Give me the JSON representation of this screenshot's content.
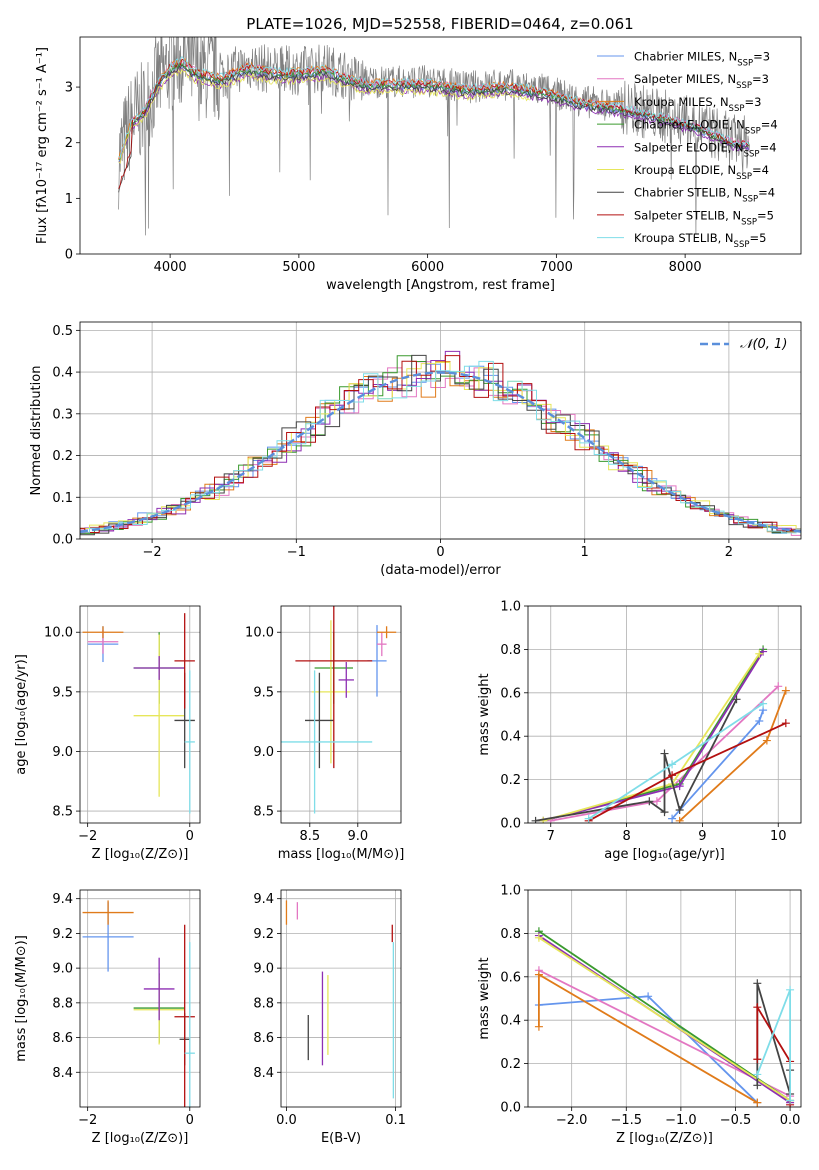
{
  "chart_data": [
    {
      "panel": "spectrum",
      "type": "line",
      "title": "PLATE=1026, MJD=52558, FIBERID=0464, z=0.061",
      "xlabel": "wavelength [Angstrom, rest frame]",
      "ylabel": "Flux [fλ10⁻¹⁷ erg cm⁻² s⁻¹ A⁻¹]",
      "xlim": [
        3300,
        8900
      ],
      "ylim": [
        0,
        3.9
      ],
      "xticks": [
        "4000",
        "5000",
        "6000",
        "7000",
        "8000"
      ],
      "yticks": [
        "0",
        "1",
        "2",
        "3"
      ],
      "legend": "top-right",
      "data_color": "#808080",
      "data_anchors": [
        [
          3600,
          1.7
        ],
        [
          3700,
          2.4
        ],
        [
          3800,
          2.6
        ],
        [
          3900,
          3.1
        ],
        [
          4000,
          3.4
        ],
        [
          4100,
          3.5
        ],
        [
          4200,
          3.3
        ],
        [
          4400,
          3.2
        ],
        [
          4600,
          3.4
        ],
        [
          4800,
          3.3
        ],
        [
          5000,
          3.3
        ],
        [
          5200,
          3.35
        ],
        [
          5500,
          3.1
        ],
        [
          5800,
          3.1
        ],
        [
          6000,
          3.1
        ],
        [
          6300,
          3.0
        ],
        [
          6600,
          3.05
        ],
        [
          6900,
          2.95
        ],
        [
          7200,
          2.75
        ],
        [
          7500,
          2.65
        ],
        [
          7800,
          2.5
        ],
        [
          8100,
          2.3
        ],
        [
          8400,
          2.0
        ],
        [
          8500,
          2.0
        ]
      ],
      "series": [
        {
          "name": "Chabrier MILES, N",
          "sub": "SSP",
          "suffix": "=3",
          "color": "#6495ED"
        },
        {
          "name": "Salpeter MILES, N",
          "sub": "SSP",
          "suffix": "=3",
          "color": "#E377C2"
        },
        {
          "name": "Kroupa MILES, N",
          "sub": "SSP",
          "suffix": "=3",
          "color": "#E07B1A"
        },
        {
          "name": "Chabrier ELODIE, N",
          "sub": "SSP",
          "suffix": "=4",
          "color": "#3A9A2E"
        },
        {
          "name": "Salpeter ELODIE, N",
          "sub": "SSP",
          "suffix": "=4",
          "color": "#8E2FB3"
        },
        {
          "name": "Kroupa ELODIE, N",
          "sub": "SSP",
          "suffix": "=4",
          "color": "#E6E65A"
        },
        {
          "name": "Chabrier STELIB, N",
          "sub": "SSP",
          "suffix": "=4",
          "color": "#444444"
        },
        {
          "name": "Salpeter STELIB, N",
          "sub": "SSP",
          "suffix": "=5",
          "color": "#B31010"
        },
        {
          "name": "Kroupa STELIB, N",
          "sub": "SSP",
          "suffix": "=5",
          "color": "#7FDDE8"
        }
      ]
    },
    {
      "panel": "residuals",
      "type": "histogram",
      "xlabel": "(data-model)/error",
      "ylabel": "Normed distribution",
      "xlim": [
        -2.5,
        2.5
      ],
      "ylim": [
        0,
        0.52
      ],
      "xticks": [
        "−2",
        "−1",
        "0",
        "1",
        "2"
      ],
      "yticks": [
        "0.0",
        "0.1",
        "0.2",
        "0.3",
        "0.4",
        "0.5"
      ],
      "legend_label": "𝒩(0, 1)",
      "legend_color": "#5A8FDB",
      "bin_width": 0.1
    },
    {
      "panel": "age-vs-Z",
      "type": "errorbar",
      "xlabel": "Z [log₁₀(Z/Z⊙)]",
      "ylabel": "age  [log₁₀(age/yr)]",
      "xlim": [
        -2.15,
        0.2
      ],
      "ylim": [
        8.4,
        10.22
      ],
      "xticks": [
        "−2",
        "0"
      ],
      "yticks": [
        "8.5",
        "9.0",
        "9.5",
        "10.0"
      ],
      "points": [
        {
          "color": "#6495ED",
          "x": -1.7,
          "xerr": 0.3,
          "y": 9.9,
          "yerr": 0.15
        },
        {
          "color": "#E377C2",
          "x": -1.7,
          "xerr": 0.3,
          "y": 9.92,
          "yerr": 0.1
        },
        {
          "color": "#E07B1A",
          "x": -1.7,
          "xerr": 0.4,
          "y": 10.0,
          "yerr": 0.05
        },
        {
          "color": "#3A9A2E",
          "x": -0.6,
          "xerr": 0.5,
          "y": 9.7,
          "yerr": 0.3
        },
        {
          "color": "#E6E65A",
          "x": -0.6,
          "xerr": 0.5,
          "y": 9.3,
          "yerr": 0.68
        },
        {
          "color": "#8E2FB3",
          "x": -0.6,
          "xerr": 0.5,
          "y": 9.7,
          "yerr": 0.1
        },
        {
          "color": "#444444",
          "x": -0.1,
          "xerr": 0.2,
          "y": 9.26,
          "yerr": 0.4
        },
        {
          "color": "#B31010",
          "x": -0.1,
          "xerr": 0.2,
          "y": 9.76,
          "yerr": 0.4
        },
        {
          "color": "#7FDDE8",
          "x": 0.0,
          "xerr": 0.1,
          "y": 9.08,
          "yerr": 0.6
        }
      ]
    },
    {
      "panel": "age-vs-mass",
      "type": "errorbar",
      "xlabel": "mass [log₁₀(M/M⊙)]",
      "xlim": [
        8.2,
        9.45
      ],
      "ylim": [
        8.4,
        10.22
      ],
      "xticks": [
        "8.5",
        "9.0"
      ],
      "yticks": [
        "8.5",
        "9.0",
        "9.5",
        "10.0"
      ],
      "points": [
        {
          "color": "#6495ED",
          "x": 9.2,
          "xerr": 0.1,
          "y": 9.76,
          "yerr": 0.3
        },
        {
          "color": "#E377C2",
          "x": 9.25,
          "xerr": 0.05,
          "y": 9.9,
          "yerr": 0.1
        },
        {
          "color": "#E07B1A",
          "x": 9.3,
          "xerr": 0.1,
          "y": 10.0,
          "yerr": 0.05
        },
        {
          "color": "#3A9A2E",
          "x": 8.75,
          "xerr": 0.2,
          "y": 9.7,
          "yerr": 0.3
        },
        {
          "color": "#E6E65A",
          "x": 8.72,
          "xerr": 0.2,
          "y": 9.5,
          "yerr": 0.6
        },
        {
          "color": "#8E2FB3",
          "x": 8.88,
          "xerr": 0.08,
          "y": 9.6,
          "yerr": 0.15
        },
        {
          "color": "#444444",
          "x": 8.6,
          "xerr": 0.15,
          "y": 9.26,
          "yerr": 0.4
        },
        {
          "color": "#B31010",
          "x": 8.75,
          "xerr": 0.4,
          "y": 9.76,
          "yerr": 0.9
        },
        {
          "color": "#7FDDE8",
          "x": 8.55,
          "xerr": 0.6,
          "y": 9.08,
          "yerr": 0.6
        }
      ]
    },
    {
      "panel": "weight-vs-age",
      "type": "line",
      "xlabel": "age  [log₁₀(age/yr)]",
      "ylabel": "mass weight",
      "xlim": [
        6.7,
        10.3
      ],
      "ylim": [
        0,
        1
      ],
      "xticks": [
        "7",
        "8",
        "9",
        "10"
      ],
      "yticks": [
        "0.0",
        "0.2",
        "0.4",
        "0.6",
        "0.8",
        "1.0"
      ],
      "series": [
        {
          "color": "#6495ED",
          "x": [
            8.6,
            9.75,
            9.8
          ],
          "y": [
            0.02,
            0.47,
            0.52
          ]
        },
        {
          "color": "#E377C2",
          "x": [
            7.0,
            8.4,
            10.0
          ],
          "y": [
            0.01,
            0.1,
            0.63
          ]
        },
        {
          "color": "#E07B1A",
          "x": [
            8.7,
            9.85,
            10.1
          ],
          "y": [
            0.01,
            0.38,
            0.61
          ]
        },
        {
          "color": "#3A9A2E",
          "x": [
            6.9,
            8.7,
            9.8
          ],
          "y": [
            0.01,
            0.18,
            0.8
          ]
        },
        {
          "color": "#8E2FB3",
          "x": [
            6.9,
            8.7,
            9.8
          ],
          "y": [
            0.01,
            0.17,
            0.79
          ]
        },
        {
          "color": "#E6E65A",
          "x": [
            6.9,
            8.6,
            9.75
          ],
          "y": [
            0.01,
            0.18,
            0.78
          ]
        },
        {
          "color": "#444444",
          "x": [
            6.8,
            8.3,
            8.5,
            8.5,
            8.7,
            9.45
          ],
          "y": [
            0.01,
            0.1,
            0.05,
            0.32,
            0.06,
            0.57
          ]
        },
        {
          "color": "#B31010",
          "x": [
            7.5,
            8.6,
            10.1
          ],
          "y": [
            0.01,
            0.22,
            0.46
          ]
        },
        {
          "color": "#7FDDE8",
          "x": [
            7.5,
            8.6,
            9.8
          ],
          "y": [
            0.02,
            0.27,
            0.55
          ]
        }
      ]
    },
    {
      "panel": "mass-vs-Z",
      "type": "errorbar",
      "xlabel": "Z [log₁₀(Z/Z⊙)]",
      "ylabel": "mass [log₁₀(M/M⊙)]",
      "xlim": [
        -2.15,
        0.2
      ],
      "ylim": [
        8.2,
        9.45
      ],
      "xticks": [
        "−2",
        "0"
      ],
      "yticks": [
        "8.4",
        "8.6",
        "8.8",
        "9.0",
        "9.2",
        "9.4"
      ],
      "points": [
        {
          "color": "#6495ED",
          "x": -1.6,
          "xerr": 0.5,
          "y": 9.18,
          "yerr": 0.2
        },
        {
          "color": "#E07B1A",
          "x": -1.6,
          "xerr": 0.5,
          "y": 9.32,
          "yerr": 0.07
        },
        {
          "color": "#3A9A2E",
          "x": -0.6,
          "xerr": 0.5,
          "y": 8.77,
          "yerr": 0.2
        },
        {
          "color": "#E6E65A",
          "x": -0.6,
          "xerr": 0.5,
          "y": 8.76,
          "yerr": 0.2
        },
        {
          "color": "#8E2FB3",
          "x": -0.6,
          "xerr": 0.3,
          "y": 8.88,
          "yerr": 0.18
        },
        {
          "color": "#444444",
          "x": -0.1,
          "xerr": 0.1,
          "y": 8.59,
          "yerr": 0.15
        },
        {
          "color": "#B31010",
          "x": -0.1,
          "xerr": 0.2,
          "y": 8.72,
          "yerr": 0.53
        },
        {
          "color": "#7FDDE8",
          "x": 0.0,
          "xerr": 0.1,
          "y": 8.51,
          "yerr": 0.64
        }
      ]
    },
    {
      "panel": "mass-vs-EBV",
      "type": "errorbar",
      "xlabel": "E(B-V)",
      "xlim": [
        -0.005,
        0.105
      ],
      "ylim": [
        8.2,
        9.45
      ],
      "xticks": [
        "0.0",
        "0.1"
      ],
      "yticks": [
        "8.4",
        "8.6",
        "8.8",
        "9.0",
        "9.2",
        "9.4"
      ],
      "points": [
        {
          "color": "#E07B1A",
          "x": 0.0,
          "y": 9.32,
          "yerr": 0.07
        },
        {
          "color": "#E377C2",
          "x": 0.01,
          "y": 9.33,
          "yerr": 0.05
        },
        {
          "color": "#444444",
          "x": 0.02,
          "y": 8.6,
          "yerr": 0.13
        },
        {
          "color": "#8E2FB3",
          "x": 0.033,
          "y": 8.71,
          "yerr": 0.27
        },
        {
          "color": "#E6E65A",
          "x": 0.038,
          "y": 8.73,
          "yerr": 0.23
        },
        {
          "color": "#B31010",
          "x": 0.097,
          "y": 9.2,
          "yerr": 0.05
        },
        {
          "color": "#7FDDE8",
          "x": 0.098,
          "y": 8.7,
          "yerr": 0.45
        }
      ]
    },
    {
      "panel": "weight-vs-Z",
      "type": "line",
      "xlabel": "Z [log₁₀(Z/Z⊙)]",
      "ylabel": "mass weight",
      "xlim": [
        -2.4,
        0.1
      ],
      "ylim": [
        0,
        1
      ],
      "xticks": [
        "−2.0",
        "−1.5",
        "−1.0",
        "−0.5",
        "0.0"
      ],
      "yticks": [
        "0.0",
        "0.2",
        "0.4",
        "0.6",
        "0.8",
        "1.0"
      ],
      "series": [
        {
          "color": "#6495ED",
          "x": [
            -2.3,
            -1.3,
            -0.3
          ],
          "y": [
            0.47,
            0.51,
            0.02
          ]
        },
        {
          "color": "#E377C2",
          "x": [
            -2.3,
            0.0
          ],
          "y": [
            0.63,
            0.05
          ]
        },
        {
          "color": "#E07B1A",
          "x": [
            -2.3,
            -2.3,
            -0.3
          ],
          "y": [
            0.37,
            0.61,
            0.02
          ]
        },
        {
          "color": "#3A9A2E",
          "x": [
            -2.3,
            0.0
          ],
          "y": [
            0.81,
            0.03
          ]
        },
        {
          "color": "#8E2FB3",
          "x": [
            -2.3,
            0.0
          ],
          "y": [
            0.79,
            0.02
          ]
        },
        {
          "color": "#E6E65A",
          "x": [
            -2.3,
            0.0
          ],
          "y": [
            0.78,
            0.03
          ]
        },
        {
          "color": "#444444",
          "x": [
            -0.3,
            -0.3,
            0.0,
            0.0
          ],
          "y": [
            0.1,
            0.57,
            0.06,
            0.17
          ]
        },
        {
          "color": "#B31010",
          "x": [
            -0.3,
            -0.3,
            0.0,
            0.0
          ],
          "y": [
            0.22,
            0.46,
            0.21,
            0.01
          ]
        },
        {
          "color": "#7FDDE8",
          "x": [
            -0.3,
            0.0,
            0.0
          ],
          "y": [
            0.15,
            0.54,
            0.03
          ]
        }
      ]
    }
  ]
}
